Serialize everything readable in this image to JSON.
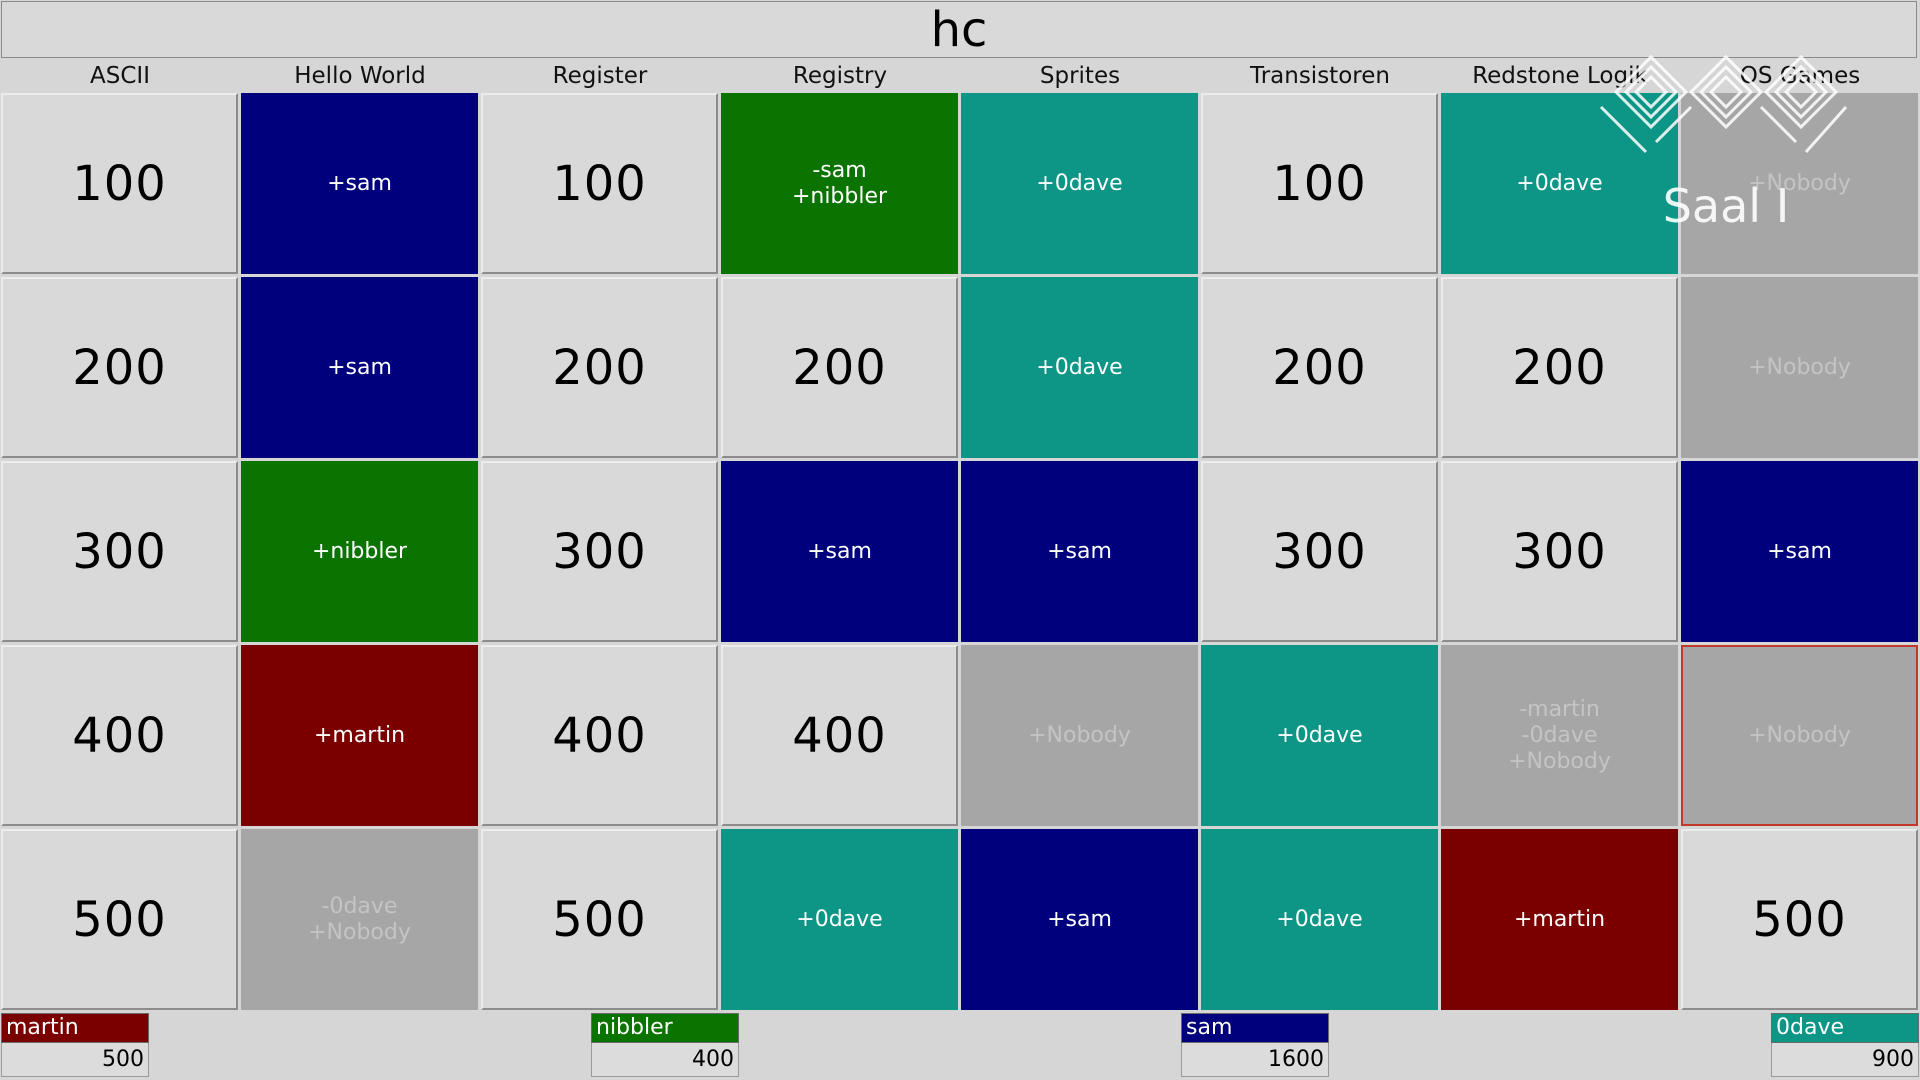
{
  "board_title": "hc",
  "colors": {
    "martin": "#7a0000",
    "nibbler": "#0b7300",
    "sam": "#00007d",
    "0dave": "#0d9586",
    "nobody": "#a6a6a6"
  },
  "categories": [
    "ASCII",
    "Hello World",
    "Register",
    "Registry",
    "Sprites",
    "Transistoren",
    "Redstone Logik",
    "OS Games"
  ],
  "rows": [
    [
      {
        "text": "100",
        "status": "open"
      },
      {
        "text": "+sam",
        "status": "sam"
      },
      {
        "text": "100",
        "status": "open"
      },
      {
        "text": "-sam\n+nibbler",
        "status": "nibbler"
      },
      {
        "text": "+0dave",
        "status": "0dave"
      },
      {
        "text": "100",
        "status": "open"
      },
      {
        "text": "+0dave",
        "status": "0dave"
      },
      {
        "text": "+Nobody",
        "status": "nobody"
      }
    ],
    [
      {
        "text": "200",
        "status": "open"
      },
      {
        "text": "+sam",
        "status": "sam"
      },
      {
        "text": "200",
        "status": "open"
      },
      {
        "text": "200",
        "status": "open"
      },
      {
        "text": "+0dave",
        "status": "0dave"
      },
      {
        "text": "200",
        "status": "open"
      },
      {
        "text": "200",
        "status": "open"
      },
      {
        "text": "+Nobody",
        "status": "nobody"
      }
    ],
    [
      {
        "text": "300",
        "status": "open"
      },
      {
        "text": "+nibbler",
        "status": "nibbler"
      },
      {
        "text": "300",
        "status": "open"
      },
      {
        "text": "+sam",
        "status": "sam"
      },
      {
        "text": "+sam",
        "status": "sam"
      },
      {
        "text": "300",
        "status": "open"
      },
      {
        "text": "300",
        "status": "open"
      },
      {
        "text": "+sam",
        "status": "sam"
      }
    ],
    [
      {
        "text": "400",
        "status": "open"
      },
      {
        "text": "+martin",
        "status": "martin"
      },
      {
        "text": "400",
        "status": "open"
      },
      {
        "text": "400",
        "status": "open"
      },
      {
        "text": "+Nobody",
        "status": "nobody"
      },
      {
        "text": "+0dave",
        "status": "0dave"
      },
      {
        "text": "-martin\n-0dave\n+Nobody",
        "status": "nobody"
      },
      {
        "text": "+Nobody",
        "status": "nobody",
        "selected": true
      }
    ],
    [
      {
        "text": "500",
        "status": "open"
      },
      {
        "text": "-0dave\n+Nobody",
        "status": "nobody"
      },
      {
        "text": "500",
        "status": "open"
      },
      {
        "text": "+0dave",
        "status": "0dave"
      },
      {
        "text": "+sam",
        "status": "sam"
      },
      {
        "text": "+0dave",
        "status": "0dave"
      },
      {
        "text": "+martin",
        "status": "martin"
      },
      {
        "text": "500",
        "status": "open"
      }
    ]
  ],
  "players": [
    {
      "name": "martin",
      "score": "500",
      "color": "#7a0000"
    },
    {
      "name": "nibbler",
      "score": "400",
      "color": "#0b7300"
    },
    {
      "name": "sam",
      "score": "1600",
      "color": "#00007d"
    },
    {
      "name": "0dave",
      "score": "900",
      "color": "#0d9586"
    }
  ],
  "logo": {
    "text": "Saal I",
    "icon": "ccc-logo-icon"
  }
}
